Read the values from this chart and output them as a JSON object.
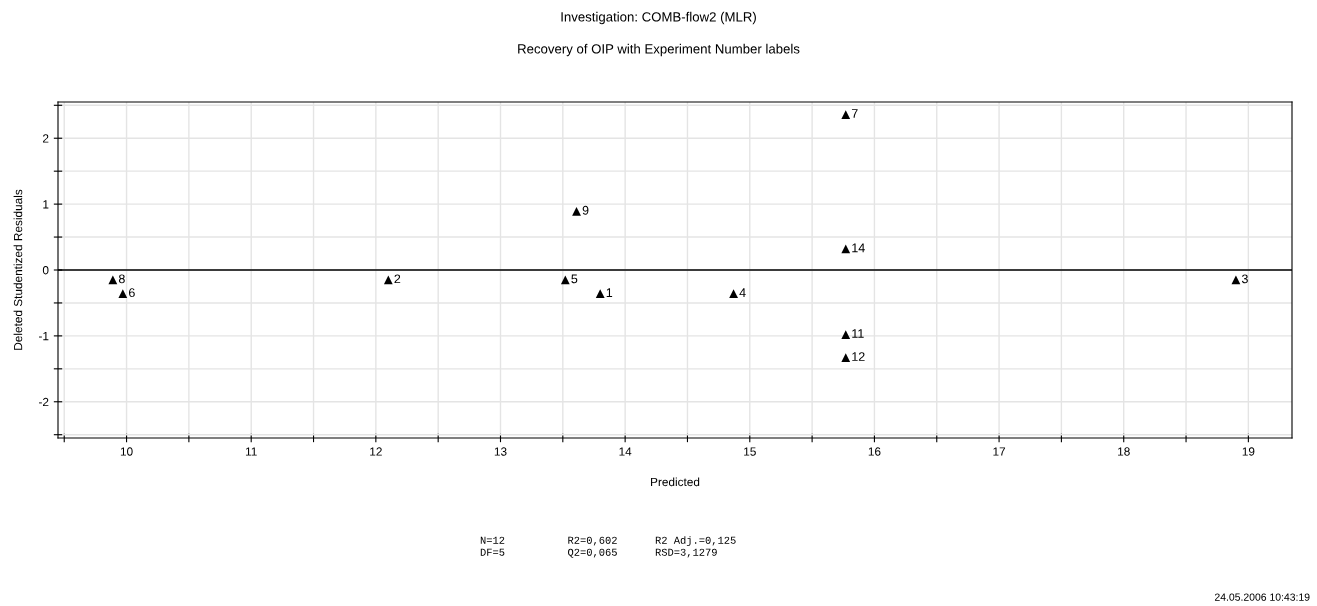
{
  "chart_data": {
    "type": "scatter",
    "title": "Investigation: COMB-flow2 (MLR)",
    "subtitle": "Recovery of OIP with Experiment Number labels",
    "xlabel": "Predicted",
    "ylabel": "Deleted Studentized Residuals",
    "x": [
      9.89,
      9.97,
      12.1,
      13.52,
      13.61,
      13.8,
      14.87,
      15.77,
      15.77,
      15.77,
      15.77,
      18.9
    ],
    "series": [
      {
        "color": "#000000",
        "values": [
          -0.15,
          -0.36,
          -0.15,
          -0.15,
          0.89,
          -0.36,
          -0.36,
          2.36,
          0.32,
          -0.98,
          -1.33,
          -0.15
        ]
      }
    ],
    "marker": "triangle",
    "grid": true,
    "legend": false,
    "xlim": [
      9.45,
      19.35
    ],
    "ylim": [
      -2.55,
      2.55
    ],
    "xticks": [
      {
        "value": 9.5,
        "label": null
      },
      10,
      {
        "value": 10.5,
        "label": null
      },
      11,
      {
        "value": 11.5,
        "label": null
      },
      12,
      {
        "value": 12.5,
        "label": null
      },
      13,
      {
        "value": 13.5,
        "label": null
      },
      14,
      {
        "value": 14.5,
        "label": null
      },
      15,
      {
        "value": 15.5,
        "label": null
      },
      16,
      {
        "value": 16.5,
        "label": null
      },
      17,
      {
        "value": 17.5,
        "label": null
      },
      18,
      {
        "value": 18.5,
        "label": null
      },
      19
    ],
    "yticks": [
      {
        "value": -2.5,
        "label": null
      },
      -2,
      {
        "value": -1.5,
        "label": null
      },
      -1,
      {
        "value": -0.5,
        "label": null
      },
      0,
      {
        "value": 0.5,
        "label": null
      },
      1,
      {
        "value": 1.5,
        "label": null
      },
      2,
      {
        "value": 2.5,
        "label": null
      }
    ],
    "ref_lines": [
      {
        "axis": "y",
        "value": 0,
        "color": "#000000"
      }
    ],
    "annotations": [
      {
        "text": "8",
        "x": 9.89,
        "y": -0.15
      },
      {
        "text": "6",
        "x": 9.97,
        "y": -0.36
      },
      {
        "text": "2",
        "x": 12.1,
        "y": -0.15
      },
      {
        "text": "5",
        "x": 13.52,
        "y": -0.15
      },
      {
        "text": "9",
        "x": 13.61,
        "y": 0.89
      },
      {
        "text": "1",
        "x": 13.8,
        "y": -0.36
      },
      {
        "text": "4",
        "x": 14.87,
        "y": -0.36
      },
      {
        "text": "7",
        "x": 15.77,
        "y": 2.36
      },
      {
        "text": "14",
        "x": 15.77,
        "y": 0.32
      },
      {
        "text": "11",
        "x": 15.77,
        "y": -0.98
      },
      {
        "text": "12",
        "x": 15.77,
        "y": -1.33
      },
      {
        "text": "3",
        "x": 18.9,
        "y": -0.15
      },
      "N=12          R2=0,602      R2 Adj.=0,125\nDF=5          Q2=0,065      RSD=3,1279",
      "24.05.2006 10:43:19"
    ]
  }
}
